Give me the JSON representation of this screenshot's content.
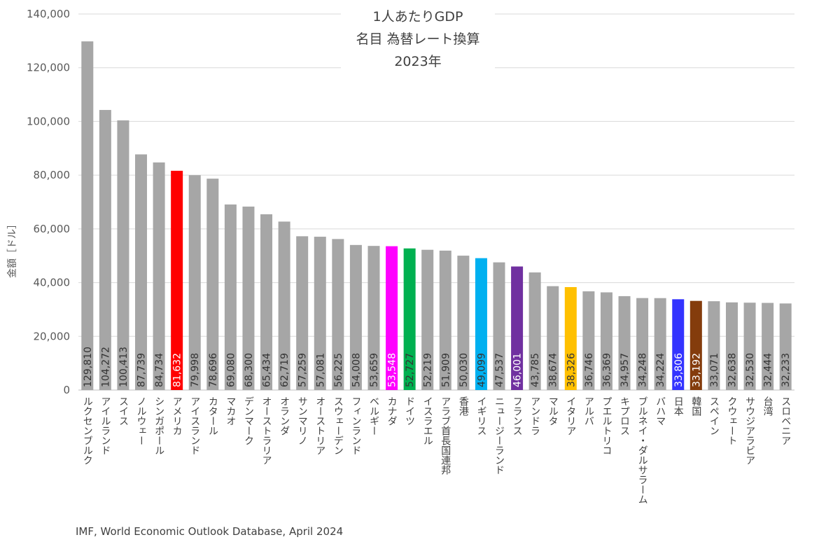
{
  "chart_data": {
    "type": "bar",
    "title": [
      "1人あたりGDP",
      "名目 為替レート換算",
      "2023年"
    ],
    "ylabel": "金額［ドル］",
    "xlabel": "",
    "ylim": [
      0,
      140000
    ],
    "yticks": [
      0,
      20000,
      40000,
      60000,
      80000,
      100000,
      120000,
      140000
    ],
    "ytick_labels": [
      "0",
      "20,000",
      "40,000",
      "60,000",
      "80,000",
      "100,000",
      "120,000",
      "140,000"
    ],
    "grid": "horizontal",
    "source": "IMF, World Economic Outlook Database, April 2024",
    "default_color": "#a6a6a6",
    "categories": [
      "ルクセンブルク",
      "アイルランド",
      "スイス",
      "ノルウェー",
      "シンガポール",
      "アメリカ",
      "アイスランド",
      "カタール",
      "マカオ",
      "デンマーク",
      "オーストラリア",
      "オランダ",
      "サンマリノ",
      "オーストリア",
      "スウェーデン",
      "フィンランド",
      "ベルギー",
      "カナダ",
      "ドイツ",
      "イスラエル",
      "アラブ首長国連邦",
      "香港",
      "イギリス",
      "ニュージーランド",
      "フランス",
      "アンドラ",
      "マルタ",
      "イタリア",
      "アルバ",
      "プエルトリコ",
      "キプロス",
      "ブルネイ・ダルサラーム",
      "バハマ",
      "日本",
      "韓国",
      "スペイン",
      "クウェート",
      "サウジアラビア",
      "台湾",
      "スロベニア"
    ],
    "values": [
      129810,
      104272,
      100413,
      87739,
      84734,
      81632,
      79998,
      78696,
      69080,
      68300,
      65434,
      62719,
      57259,
      57081,
      56225,
      54008,
      53659,
      53548,
      52727,
      52219,
      51909,
      50030,
      49099,
      47537,
      46001,
      43785,
      38674,
      38326,
      36746,
      36369,
      34957,
      34248,
      34224,
      33806,
      33192,
      33071,
      32638,
      32530,
      32444,
      32233
    ],
    "value_labels": [
      "129,810",
      "104,272",
      "100,413",
      "87,739",
      "84,734",
      "81,632",
      "79,998",
      "78,696",
      "69,080",
      "68,300",
      "65,434",
      "62,719",
      "57,259",
      "57,081",
      "56,225",
      "54,008",
      "53,659",
      "53,548",
      "52,727",
      "52,219",
      "51,909",
      "50,030",
      "49,099",
      "47,537",
      "46,001",
      "43,785",
      "38,674",
      "38,326",
      "36,746",
      "36,369",
      "34,957",
      "34,248",
      "34,224",
      "33,806",
      "33,192",
      "33,071",
      "32,638",
      "32,530",
      "32,444",
      "32,233"
    ],
    "highlight_colors": {
      "アメリカ": "#ff0000",
      "カナダ": "#ff00ff",
      "ドイツ": "#00b050",
      "イギリス": "#00b0f0",
      "フランス": "#7030a0",
      "イタリア": "#ffc000",
      "日本": "#3333ff",
      "韓国": "#843c0c"
    }
  }
}
